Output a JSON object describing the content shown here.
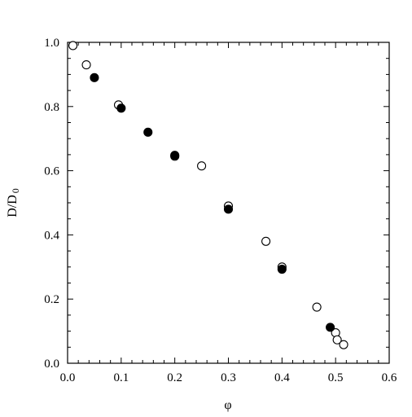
{
  "chart_data": {
    "type": "scatter",
    "xlabel": "φ",
    "ylabel": "D/D",
    "ylabel_subscript": "0",
    "xlim": [
      0.0,
      0.6
    ],
    "ylim": [
      0.0,
      1.0
    ],
    "x_ticks": [
      0.0,
      0.1,
      0.2,
      0.3,
      0.4,
      0.5,
      0.6
    ],
    "x_tick_labels": [
      "0.0",
      "0.1",
      "0.2",
      "0.3",
      "0.4",
      "0.5",
      "0.6"
    ],
    "y_ticks": [
      0.0,
      0.2,
      0.4,
      0.6,
      0.8,
      1.0
    ],
    "y_tick_labels": [
      "0.0",
      "0.2",
      "0.4",
      "0.6",
      "0.8",
      "1.0"
    ],
    "grid": false,
    "series": [
      {
        "marker": "open-circle",
        "color": "#000000",
        "points": [
          {
            "x": 0.01,
            "y": 0.99
          },
          {
            "x": 0.035,
            "y": 0.93
          },
          {
            "x": 0.095,
            "y": 0.805
          },
          {
            "x": 0.2,
            "y": 0.645
          },
          {
            "x": 0.25,
            "y": 0.615
          },
          {
            "x": 0.3,
            "y": 0.49
          },
          {
            "x": 0.37,
            "y": 0.38
          },
          {
            "x": 0.4,
            "y": 0.3
          },
          {
            "x": 0.465,
            "y": 0.175
          },
          {
            "x": 0.5,
            "y": 0.095
          },
          {
            "x": 0.503,
            "y": 0.073
          },
          {
            "x": 0.515,
            "y": 0.058
          }
        ]
      },
      {
        "marker": "filled-circle",
        "color": "#000000",
        "points": [
          {
            "x": 0.05,
            "y": 0.89
          },
          {
            "x": 0.1,
            "y": 0.795
          },
          {
            "x": 0.15,
            "y": 0.72
          },
          {
            "x": 0.2,
            "y": 0.648
          },
          {
            "x": 0.3,
            "y": 0.48
          },
          {
            "x": 0.4,
            "y": 0.293
          },
          {
            "x": 0.49,
            "y": 0.112
          }
        ]
      }
    ]
  }
}
